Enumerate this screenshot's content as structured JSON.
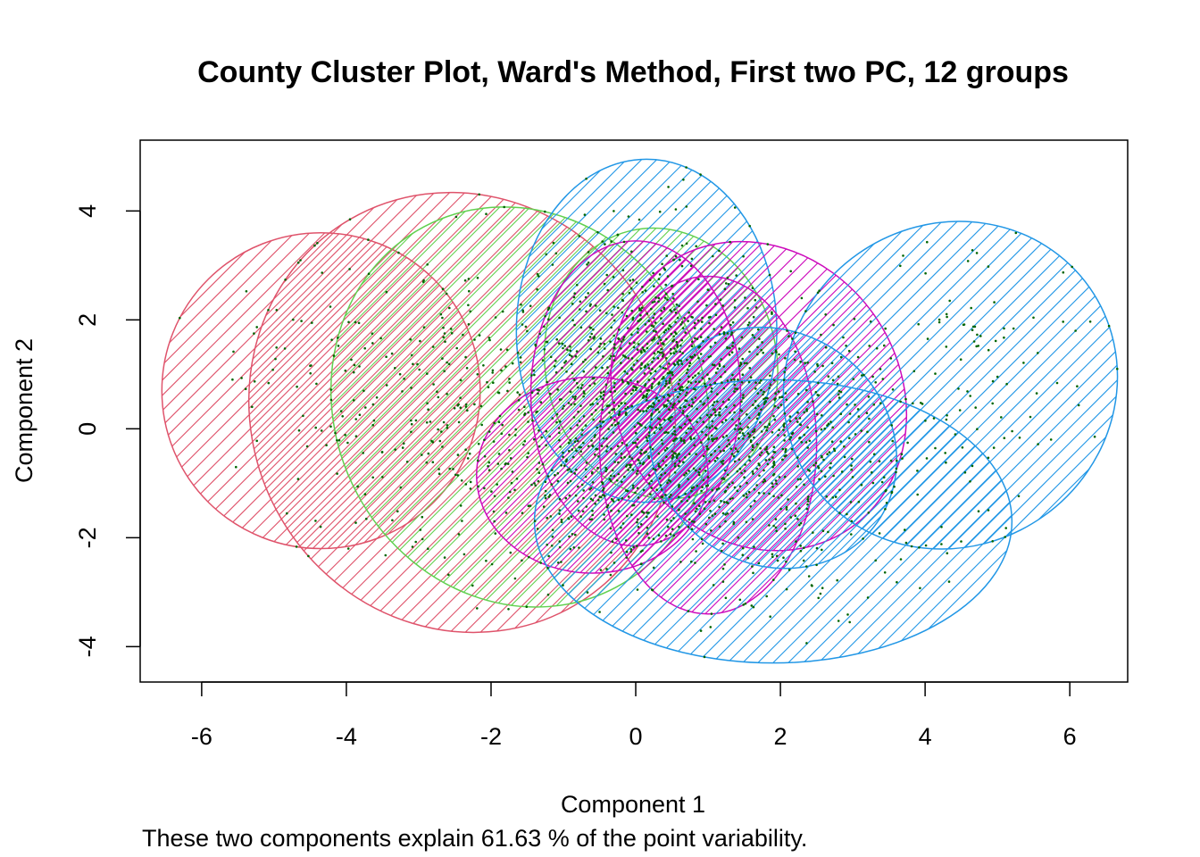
{
  "chart_data": {
    "type": "scatter",
    "title": "County Cluster Plot, Ward's Method, First two PC, 12 groups",
    "xlabel": "Component 1",
    "ylabel": "Component 2",
    "caption": "These two components explain 61.63 % of the point variability.",
    "xlim": [
      -6.85,
      6.8
    ],
    "ylim": [
      -4.65,
      5.3
    ],
    "x_ticks": [
      -6,
      -4,
      -2,
      0,
      2,
      4,
      6
    ],
    "y_ticks": [
      -4,
      -2,
      0,
      2,
      4
    ],
    "x_tick_labels": [
      "-6",
      "-4",
      "-2",
      "0",
      "2",
      "4",
      "6"
    ],
    "y_tick_labels": [
      "-4",
      "-2",
      "0",
      "2",
      "4"
    ],
    "point_color": "#006400",
    "cluster_count": 12,
    "clusters": [
      {
        "id": 1,
        "color": "#DF536B",
        "cx": -4.35,
        "cy": 0.7,
        "rx": 2.2,
        "ry": 2.9,
        "angle_deg": 0
      },
      {
        "id": 2,
        "color": "#DF536B",
        "cx": -2.4,
        "cy": 0.3,
        "rx": 2.9,
        "ry": 4.1,
        "angle_deg": -30
      },
      {
        "id": 3,
        "color": "#61D04F",
        "cx": -1.6,
        "cy": 0.4,
        "rx": 2.55,
        "ry": 3.75,
        "angle_deg": -28
      },
      {
        "id": 4,
        "color": "#61D04F",
        "cx": 0.35,
        "cy": 1.2,
        "rx": 1.6,
        "ry": 2.5,
        "angle_deg": -12
      },
      {
        "id": 5,
        "color": "#2297E6",
        "cx": 0.15,
        "cy": 1.8,
        "rx": 1.8,
        "ry": 3.15,
        "angle_deg": 0
      },
      {
        "id": 6,
        "color": "#CD0BBC",
        "cx": 1.7,
        "cy": 0.6,
        "rx": 1.95,
        "ry": 2.95,
        "angle_deg": -35
      },
      {
        "id": 7,
        "color": "#CD0BBC",
        "cx": 0.0,
        "cy": 0.65,
        "rx": 1.45,
        "ry": 2.8,
        "angle_deg": 0
      },
      {
        "id": 8,
        "color": "#CD0BBC",
        "cx": -0.6,
        "cy": -0.85,
        "rx": 1.6,
        "ry": 1.8,
        "angle_deg": 0
      },
      {
        "id": 9,
        "color": "#CD0BBC",
        "cx": 1.0,
        "cy": -0.3,
        "rx": 1.5,
        "ry": 3.1,
        "angle_deg": 0
      },
      {
        "id": 10,
        "color": "#2297E6",
        "cx": 1.9,
        "cy": -0.35,
        "rx": 1.6,
        "ry": 2.35,
        "angle_deg": -52
      },
      {
        "id": 11,
        "color": "#2297E6",
        "cx": 1.9,
        "cy": -1.7,
        "rx": 3.3,
        "ry": 2.6,
        "angle_deg": 0
      },
      {
        "id": 12,
        "color": "#2297E6",
        "cx": 4.35,
        "cy": 0.8,
        "rx": 2.35,
        "ry": 2.95,
        "angle_deg": -35
      }
    ]
  }
}
